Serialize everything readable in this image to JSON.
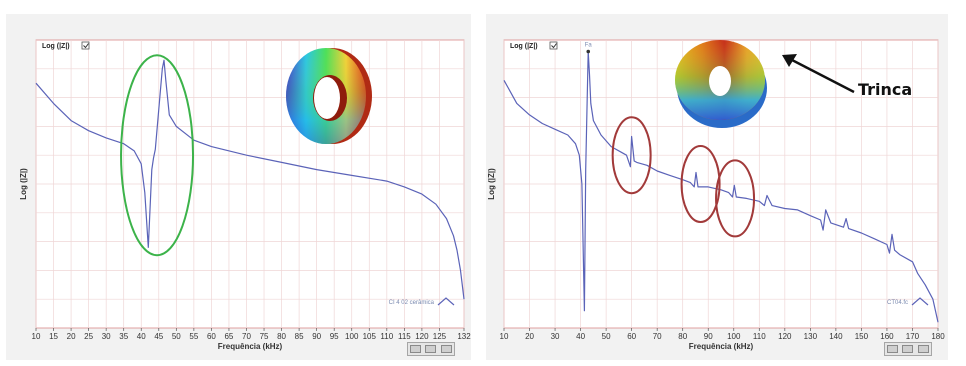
{
  "chart_data": [
    {
      "type": "line",
      "toggle_label": "Log (|Z|)",
      "xlabel": "Frequência (kHz)",
      "ylabel": "Log (|Z|)",
      "xlim": [
        10,
        132
      ],
      "x_ticks": [
        10,
        15,
        20,
        25,
        30,
        35,
        40,
        45,
        50,
        55,
        60,
        65,
        70,
        75,
        80,
        85,
        90,
        95,
        100,
        105,
        110,
        115,
        120,
        125,
        132
      ],
      "grid": true,
      "legend": "CI 4 02 cerâmica",
      "legend_position": "bottom-right",
      "series": [
        {
          "name": "CI 4 02 cerâmica",
          "color": "#5b63b8",
          "x": [
            10,
            15,
            20,
            25,
            30,
            35,
            38,
            40,
            41,
            42,
            43,
            43.5,
            44,
            45,
            46,
            46.5,
            47,
            48,
            50,
            55,
            60,
            70,
            80,
            90,
            100,
            110,
            115,
            120,
            124,
            127,
            129,
            130,
            131,
            132
          ],
          "y": [
            0.85,
            0.78,
            0.72,
            0.685,
            0.66,
            0.64,
            0.615,
            0.57,
            0.47,
            0.28,
            0.55,
            0.59,
            0.62,
            0.76,
            0.9,
            0.93,
            0.86,
            0.74,
            0.7,
            0.652,
            0.63,
            0.6,
            0.575,
            0.55,
            0.53,
            0.51,
            0.49,
            0.465,
            0.43,
            0.38,
            0.32,
            0.27,
            0.2,
            0.1
          ]
        }
      ],
      "annotations": [
        {
          "shape": "ellipse",
          "color": "#3cb34a",
          "x": 44.5,
          "y": 0.6
        }
      ]
    },
    {
      "type": "line",
      "toggle_label": "Log (|Z|)",
      "xlabel": "Frequência (kHz)",
      "ylabel": "Log (|Z|)",
      "xlim": [
        10,
        180
      ],
      "x_ticks": [
        10,
        20,
        30,
        40,
        50,
        60,
        70,
        80,
        90,
        100,
        110,
        120,
        130,
        140,
        150,
        160,
        170,
        180
      ],
      "grid": true,
      "legend": "CT04.fc",
      "legend_position": "bottom-right",
      "marker_label": "Fa",
      "series": [
        {
          "name": "CT04.fc",
          "color": "#5b63b8",
          "x": [
            10,
            15,
            20,
            25,
            30,
            35,
            38,
            39.5,
            40.5,
            41.5,
            42,
            43,
            43.5,
            44,
            45,
            48,
            52,
            56,
            58,
            59.5,
            60,
            61,
            62,
            66,
            70,
            75,
            80,
            83,
            84.5,
            85.2,
            86,
            90,
            95,
            98,
            99.5,
            100.2,
            101,
            105,
            110,
            112,
            113,
            115,
            120,
            125,
            130,
            134,
            135,
            136,
            138,
            143,
            144,
            145,
            150,
            155,
            160,
            161,
            162,
            163,
            165,
            170,
            172,
            175,
            178,
            180
          ],
          "y": [
            0.86,
            0.78,
            0.74,
            0.71,
            0.69,
            0.67,
            0.64,
            0.6,
            0.5,
            0.06,
            0.55,
            0.96,
            0.88,
            0.78,
            0.72,
            0.67,
            0.63,
            0.61,
            0.6,
            0.56,
            0.665,
            0.58,
            0.575,
            0.565,
            0.545,
            0.53,
            0.515,
            0.505,
            0.49,
            0.54,
            0.49,
            0.49,
            0.48,
            0.47,
            0.455,
            0.495,
            0.455,
            0.45,
            0.44,
            0.425,
            0.46,
            0.425,
            0.415,
            0.41,
            0.39,
            0.375,
            0.34,
            0.41,
            0.365,
            0.35,
            0.38,
            0.345,
            0.33,
            0.31,
            0.29,
            0.26,
            0.325,
            0.27,
            0.255,
            0.23,
            0.19,
            0.15,
            0.1,
            0.02
          ]
        }
      ],
      "annotations": [
        {
          "shape": "ellipse",
          "color": "#a23a3a",
          "x": 60,
          "y": 0.6
        },
        {
          "shape": "ellipse",
          "color": "#a23a3a",
          "x": 87,
          "y": 0.5
        },
        {
          "shape": "ellipse",
          "color": "#a23a3a",
          "x": 100.5,
          "y": 0.45
        }
      ],
      "callout": {
        "text": "Trinca",
        "color": "#111111"
      }
    }
  ]
}
